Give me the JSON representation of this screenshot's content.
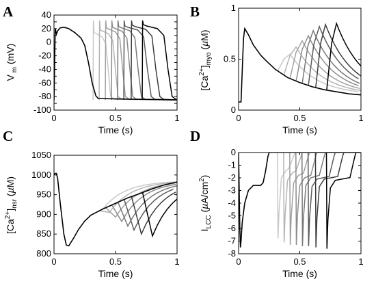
{
  "figure": {
    "panels": [
      {
        "label": "A",
        "xlabel": "Time (s)",
        "ylabel": "V_m (mV)"
      },
      {
        "label": "B",
        "xlabel": "Time (s)",
        "ylabel": "[Ca2+]myo (µM)"
      },
      {
        "label": "C",
        "xlabel": "Time (s)",
        "ylabel": "[Ca2+]nsr (µM)"
      },
      {
        "label": "D",
        "xlabel": "Time (s)",
        "ylabel": "I_LCC (µA/cm2)"
      }
    ]
  },
  "chart_data": [
    {
      "id": "A",
      "type": "line",
      "title": "",
      "xlabel": "Time (s)",
      "ylabel": "V_m (mV)",
      "xlim": [
        0,
        1
      ],
      "ylim": [
        -100,
        40
      ],
      "xticks": [
        0,
        0.5,
        1
      ],
      "yticks": [
        40,
        30,
        20,
        10,
        0,
        -10,
        -20,
        -30,
        -40,
        -50,
        -60,
        -70,
        -80,
        -90,
        -100
      ],
      "grid": false,
      "base_series": {
        "x": [
          0,
          0.01,
          0.02,
          0.03,
          0.05,
          0.08,
          0.12,
          0.17,
          0.22,
          0.25,
          0.28,
          0.31,
          0.34,
          0.36,
          1.0
        ],
        "y": [
          -86,
          20,
          12,
          17,
          21,
          22,
          20,
          14,
          6,
          -5,
          -30,
          -60,
          -79,
          -83,
          -85
        ]
      },
      "extra_beats": {
        "starts": [
          0.32,
          0.37,
          0.42,
          0.47,
          0.52,
          0.57,
          0.63,
          0.72
        ],
        "upstroke_peak_mV": [
          32,
          32,
          32,
          32,
          32,
          32,
          32,
          32
        ],
        "plateau_mV": [
          8,
          12,
          15,
          16,
          17,
          18,
          19,
          20
        ],
        "repolarization_end_s": [
          0.46,
          0.52,
          0.58,
          0.64,
          0.71,
          0.79,
          0.86,
          0.96
        ],
        "gray_levels": [
          "#c8c8c8",
          "#b4b4b4",
          "#a0a0a0",
          "#8c8c8c",
          "#787878",
          "#5a5a5a",
          "#3c3c3c",
          "#000000"
        ]
      }
    },
    {
      "id": "B",
      "type": "line",
      "title": "",
      "xlabel": "Time (s)",
      "ylabel": "[Ca2+]myo (µM)",
      "xlim": [
        0,
        1
      ],
      "ylim": [
        0,
        1
      ],
      "xticks": [
        0,
        0.5,
        1
      ],
      "yticks": [
        0,
        0.5,
        1
      ],
      "grid": false,
      "base_series": {
        "x": [
          0,
          0.02,
          0.04,
          0.05,
          0.08,
          0.12,
          0.18,
          0.22,
          0.3,
          0.4,
          0.5,
          0.6,
          0.7,
          0.8,
          0.9,
          1.0
        ],
        "y": [
          0.08,
          0.08,
          0.7,
          0.8,
          0.74,
          0.64,
          0.54,
          0.49,
          0.4,
          0.32,
          0.27,
          0.23,
          0.2,
          0.18,
          0.16,
          0.15
        ]
      },
      "extra_beats": {
        "starts": [
          0.32,
          0.37,
          0.42,
          0.47,
          0.52,
          0.57,
          0.63,
          0.72
        ],
        "peak_uM": [
          0.55,
          0.62,
          0.68,
          0.73,
          0.78,
          0.82,
          0.84,
          0.85
        ],
        "peak_delay_s": [
          0.1,
          0.1,
          0.1,
          0.1,
          0.09,
          0.09,
          0.08,
          0.08
        ],
        "gray_levels": [
          "#c8c8c8",
          "#b4b4b4",
          "#a0a0a0",
          "#8c8c8c",
          "#787878",
          "#5a5a5a",
          "#3c3c3c",
          "#000000"
        ]
      }
    },
    {
      "id": "C",
      "type": "line",
      "title": "",
      "xlabel": "Time (s)",
      "ylabel": "[Ca2+]nsr (µM)",
      "xlim": [
        0,
        1
      ],
      "ylim": [
        800,
        1050
      ],
      "xticks": [
        0,
        0.5,
        1
      ],
      "yticks": [
        800,
        850,
        900,
        950,
        1000,
        1050
      ],
      "grid": false,
      "base_series": {
        "x": [
          0,
          0.01,
          0.02,
          0.03,
          0.05,
          0.08,
          0.1,
          0.12,
          0.16,
          0.2,
          0.25,
          0.3,
          0.4,
          0.5,
          0.6,
          0.7,
          0.8,
          0.9,
          1.0
        ],
        "y": [
          1000,
          1004,
          1004,
          990,
          930,
          850,
          822,
          820,
          840,
          862,
          883,
          898,
          914,
          928,
          942,
          953,
          965,
          975,
          982
        ]
      },
      "extra_beats": {
        "starts": [
          0.32,
          0.37,
          0.42,
          0.47,
          0.52,
          0.57,
          0.63,
          0.72
        ],
        "trough_uM": [
          915,
          905,
          893,
          882,
          870,
          860,
          850,
          845
        ],
        "gray_levels": [
          "#c8c8c8",
          "#b4b4b4",
          "#a0a0a0",
          "#8c8c8c",
          "#787878",
          "#5a5a5a",
          "#3c3c3c",
          "#000000"
        ]
      }
    },
    {
      "id": "D",
      "type": "line",
      "title": "",
      "xlabel": "Time (s)",
      "ylabel": "I_LCC (µA/cm2)",
      "xlim": [
        0,
        1
      ],
      "ylim": [
        -8,
        0
      ],
      "xticks": [
        0,
        0.5,
        1
      ],
      "yticks": [
        0,
        -1,
        -2,
        -3,
        -4,
        -5,
        -6,
        -7,
        -8
      ],
      "grid": false,
      "base_series": {
        "x": [
          0,
          0.005,
          0.01,
          0.015,
          0.02,
          0.03,
          0.05,
          0.08,
          0.1,
          0.12,
          0.15,
          0.18,
          0.2,
          0.22,
          0.24,
          0.25,
          1.0
        ],
        "y": [
          0,
          -3,
          -6,
          -7.5,
          -7,
          -5.5,
          -4,
          -3,
          -2.8,
          -2.6,
          -2.6,
          -2.6,
          -2.4,
          -1.5,
          -0.3,
          0,
          0
        ]
      },
      "extra_beats": {
        "starts": [
          0.32,
          0.37,
          0.42,
          0.47,
          0.52,
          0.57,
          0.63,
          0.72
        ],
        "min_current": [
          -6.8,
          -7.1,
          -7.3,
          -7.3,
          -7.4,
          -7.4,
          -7.5,
          -7.6
        ],
        "plateau_current": [
          -1.4,
          -1.6,
          -1.8,
          -2.0,
          -2.0,
          -2.1,
          -2.1,
          -2.2
        ],
        "end_s": [
          0.46,
          0.52,
          0.58,
          0.64,
          0.71,
          0.79,
          0.86,
          0.96
        ],
        "gray_levels": [
          "#c8c8c8",
          "#b4b4b4",
          "#a0a0a0",
          "#8c8c8c",
          "#787878",
          "#5a5a5a",
          "#3c3c3c",
          "#000000"
        ]
      }
    }
  ]
}
